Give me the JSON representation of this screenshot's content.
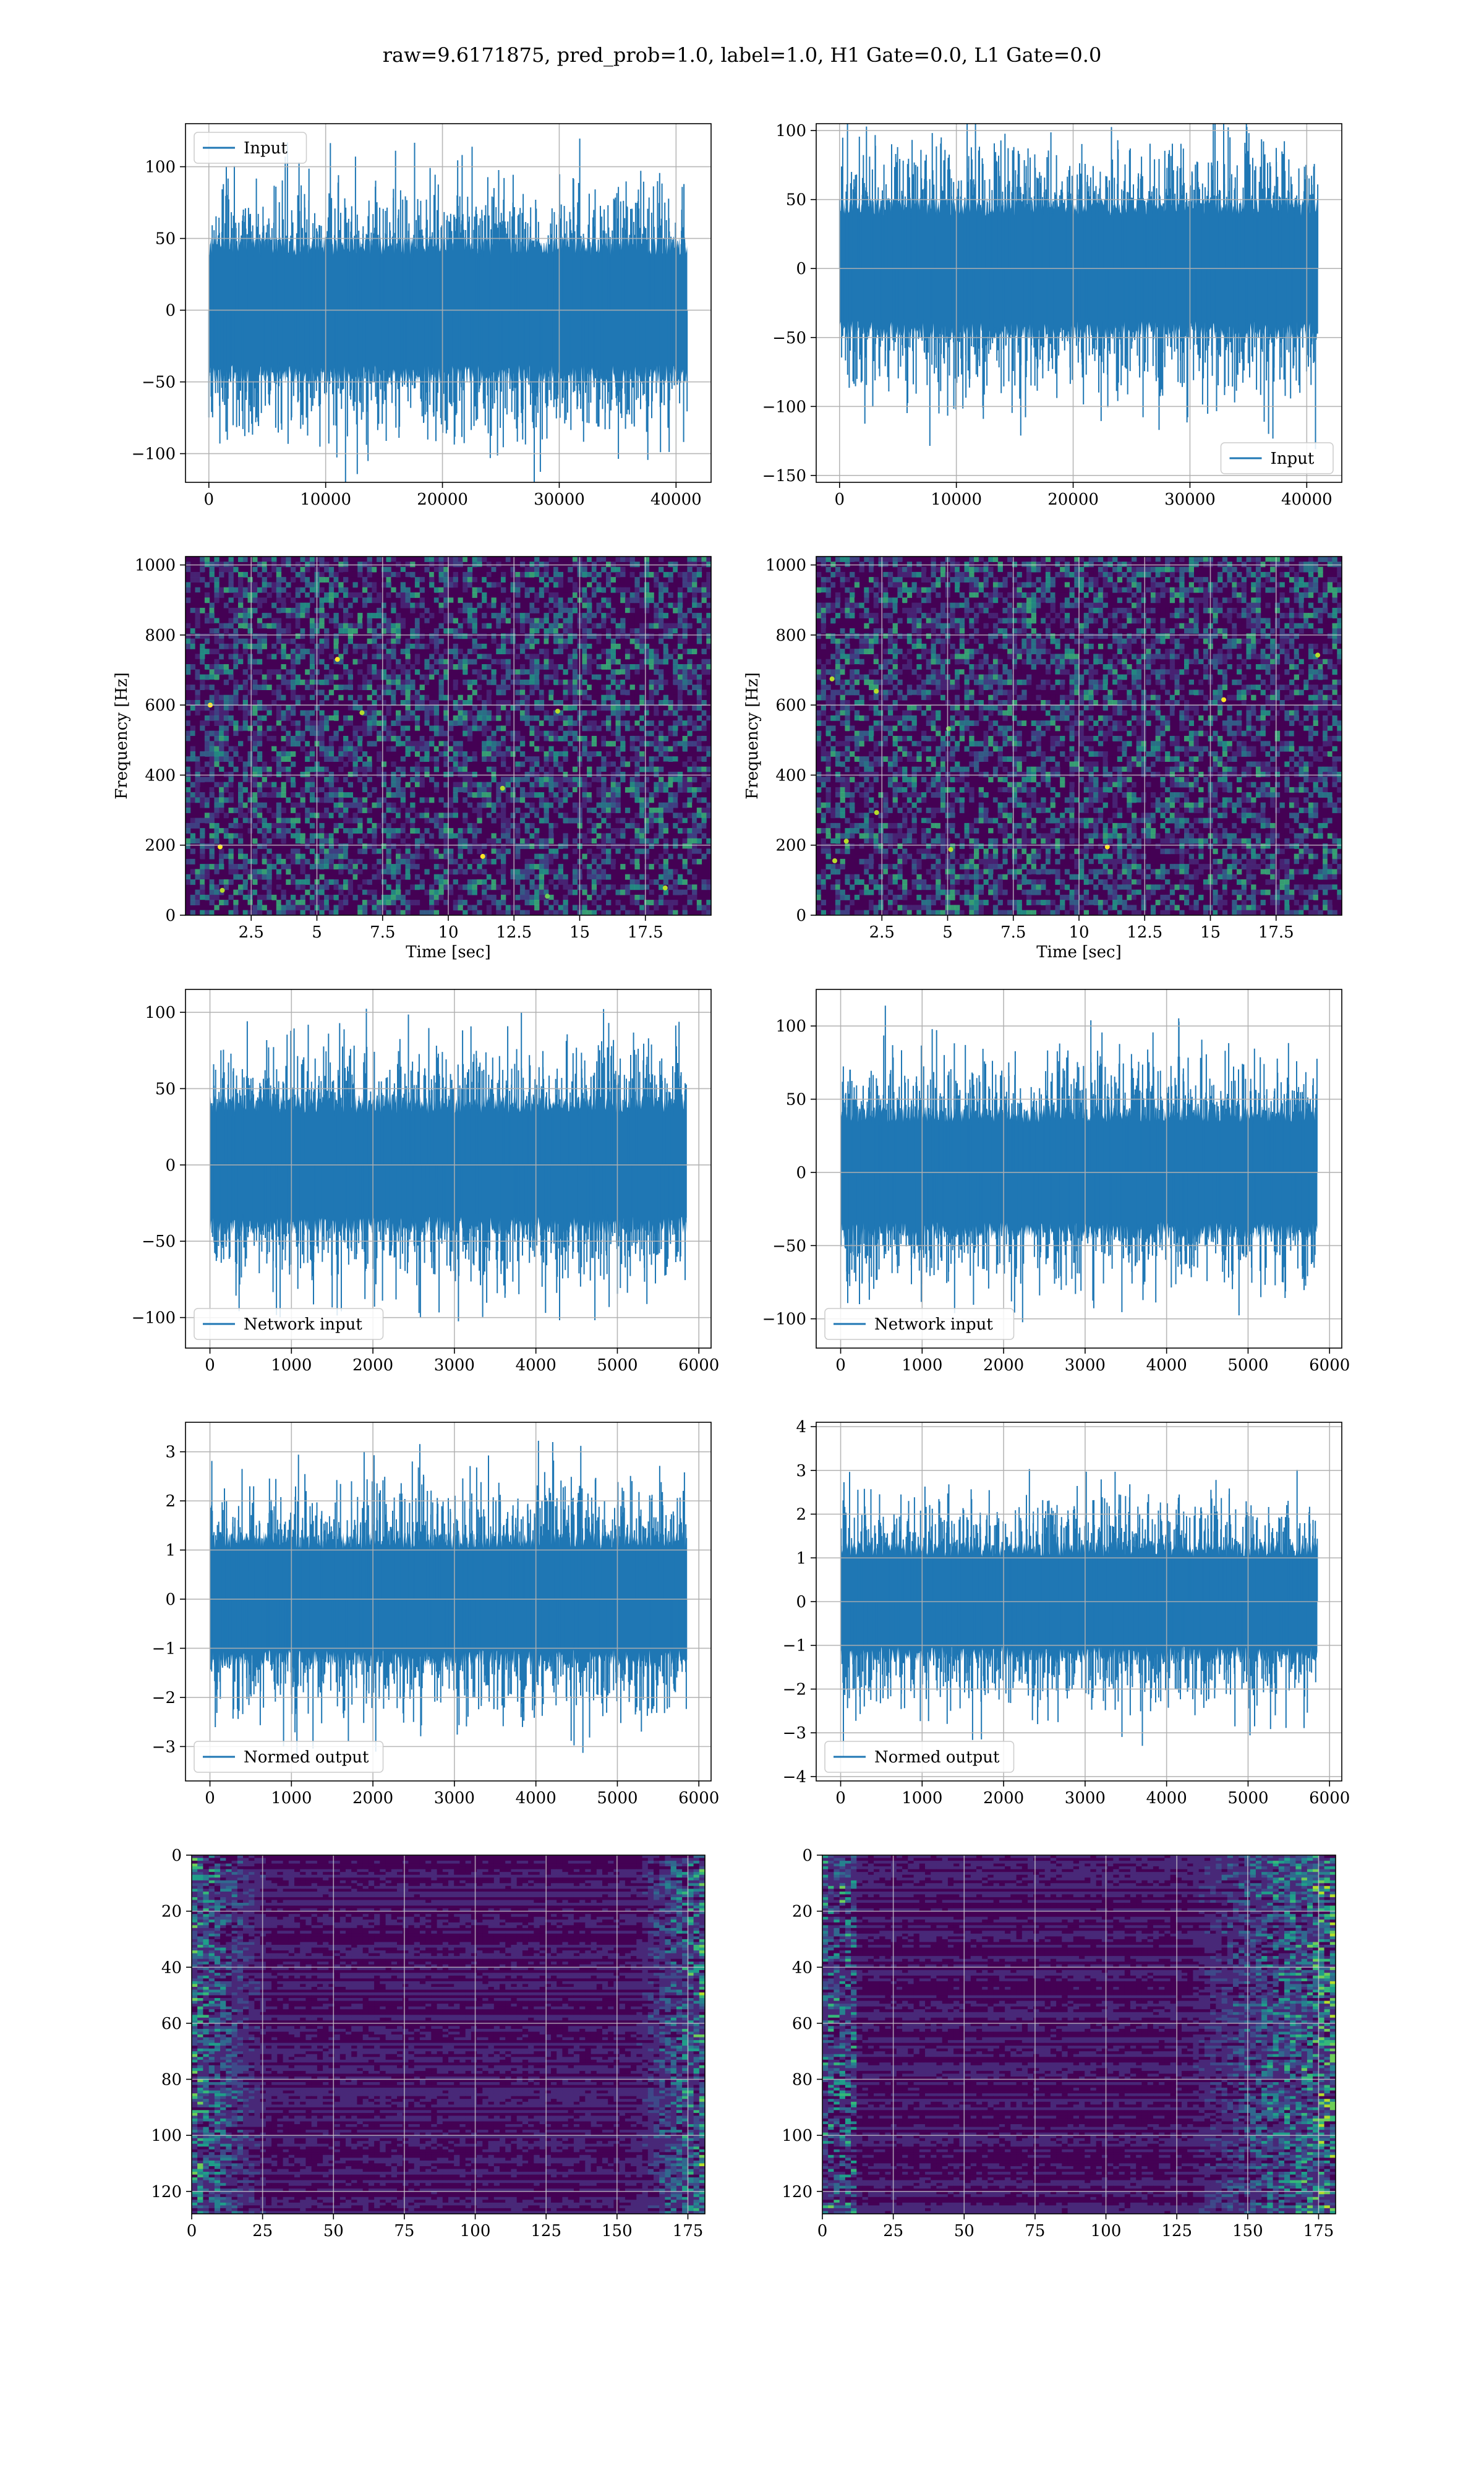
{
  "figure": {
    "suptitle": "raw=9.6171875, pred_prob=1.0, label=1.0, H1 Gate=0.0, L1 Gate=0.0"
  },
  "colors": {
    "series": "#1f77b4",
    "grid": "#b0b0b0",
    "viridis_low": "#440154",
    "viridis_high": "#fde725"
  },
  "chart_data": [
    {
      "id": "input_h1",
      "type": "line",
      "title": "",
      "xlabel": "",
      "ylabel": "",
      "xlim": [
        -2000,
        43000
      ],
      "ylim": [
        -120,
        130
      ],
      "xticks": [
        0,
        10000,
        20000,
        30000,
        40000
      ],
      "yticks": [
        -100,
        -50,
        0,
        50,
        100
      ],
      "x_range": [
        0,
        40960
      ],
      "amplitude_envelope": 45,
      "peak_amplitude": 120,
      "legend": {
        "loc": "upper-left",
        "entries": [
          "Input"
        ]
      },
      "series": [
        {
          "name": "Input"
        }
      ],
      "grid": true
    },
    {
      "id": "input_l1",
      "type": "line",
      "title": "",
      "xlabel": "",
      "ylabel": "",
      "xlim": [
        -2000,
        43000
      ],
      "ylim": [
        -155,
        105
      ],
      "xticks": [
        0,
        10000,
        20000,
        30000,
        40000
      ],
      "yticks": [
        -150,
        -100,
        -50,
        0,
        50,
        100
      ],
      "x_range": [
        0,
        40960
      ],
      "amplitude_envelope": 45,
      "peak_amplitude": 140,
      "legend": {
        "loc": "lower-right",
        "entries": [
          "Input"
        ]
      },
      "series": [
        {
          "name": "Input"
        }
      ],
      "grid": true
    },
    {
      "id": "spectrogram_h1",
      "type": "heatmap",
      "title": "",
      "xlabel": "Time [sec]",
      "ylabel": "Frequency [Hz]",
      "xlim": [
        0,
        20
      ],
      "ylim": [
        0,
        1024
      ],
      "xticks": [
        2.5,
        5.0,
        7.5,
        10.0,
        12.5,
        15.0,
        17.5
      ],
      "yticks": [
        0,
        200,
        400,
        600,
        800,
        1000
      ],
      "colormap": "viridis",
      "grid": true
    },
    {
      "id": "spectrogram_l1",
      "type": "heatmap",
      "title": "",
      "xlabel": "Time [sec]",
      "ylabel": "Frequency [Hz]",
      "xlim": [
        0,
        20
      ],
      "ylim": [
        0,
        1024
      ],
      "xticks": [
        2.5,
        5.0,
        7.5,
        10.0,
        12.5,
        15.0,
        17.5
      ],
      "yticks": [
        0,
        200,
        400,
        600,
        800,
        1000
      ],
      "colormap": "viridis",
      "grid": true
    },
    {
      "id": "network_input_h1",
      "type": "line",
      "title": "",
      "xlabel": "",
      "ylabel": "",
      "xlim": [
        -300,
        6150
      ],
      "ylim": [
        -120,
        115
      ],
      "xticks": [
        0,
        1000,
        2000,
        3000,
        4000,
        5000,
        6000
      ],
      "yticks": [
        -100,
        -50,
        0,
        50,
        100
      ],
      "x_range": [
        0,
        5850
      ],
      "amplitude_envelope": 40,
      "peak_amplitude": 105,
      "legend": {
        "loc": "lower-left",
        "entries": [
          "Network input"
        ]
      },
      "series": [
        {
          "name": "Network input"
        }
      ],
      "grid": true
    },
    {
      "id": "network_input_l1",
      "type": "line",
      "title": "",
      "xlabel": "",
      "ylabel": "",
      "xlim": [
        -300,
        6150
      ],
      "ylim": [
        -120,
        125
      ],
      "xticks": [
        0,
        1000,
        2000,
        3000,
        4000,
        5000,
        6000
      ],
      "yticks": [
        -100,
        -50,
        0,
        50,
        100
      ],
      "x_range": [
        0,
        5850
      ],
      "amplitude_envelope": 40,
      "peak_amplitude": 115,
      "legend": {
        "loc": "lower-left",
        "entries": [
          "Network input"
        ]
      },
      "series": [
        {
          "name": "Network input"
        }
      ],
      "grid": true
    },
    {
      "id": "normed_output_h1",
      "type": "line",
      "title": "",
      "xlabel": "",
      "ylabel": "",
      "xlim": [
        -300,
        6150
      ],
      "ylim": [
        -3.7,
        3.6
      ],
      "xticks": [
        0,
        1000,
        2000,
        3000,
        4000,
        5000,
        6000
      ],
      "yticks": [
        -3,
        -2,
        -1,
        0,
        1,
        2,
        3
      ],
      "x_range": [
        0,
        5850
      ],
      "amplitude_envelope": 1.2,
      "peak_amplitude": 3.4,
      "legend": {
        "loc": "lower-left",
        "entries": [
          "Normed output"
        ]
      },
      "series": [
        {
          "name": "Normed output"
        }
      ],
      "grid": true
    },
    {
      "id": "normed_output_l1",
      "type": "line",
      "title": "",
      "xlabel": "",
      "ylabel": "",
      "xlim": [
        -300,
        6150
      ],
      "ylim": [
        -4.1,
        4.1
      ],
      "xticks": [
        0,
        1000,
        2000,
        3000,
        4000,
        5000,
        6000
      ],
      "yticks": [
        -4,
        -3,
        -2,
        -1,
        0,
        1,
        2,
        3,
        4
      ],
      "x_range": [
        0,
        5850
      ],
      "amplitude_envelope": 1.2,
      "peak_amplitude": 3.7,
      "legend": {
        "loc": "lower-left",
        "entries": [
          "Normed output"
        ]
      },
      "series": [
        {
          "name": "Normed output"
        }
      ],
      "grid": true
    },
    {
      "id": "feature_map_h1",
      "type": "heatmap",
      "title": "",
      "xlabel": "",
      "ylabel": "",
      "xlim": [
        0,
        181
      ],
      "ylim": [
        128,
        0
      ],
      "xticks": [
        0,
        25,
        50,
        75,
        100,
        125,
        150,
        175
      ],
      "yticks": [
        0,
        20,
        40,
        60,
        80,
        100,
        120
      ],
      "colormap": "viridis",
      "grid": true,
      "bright_regions": "left edge and right edge"
    },
    {
      "id": "feature_map_l1",
      "type": "heatmap",
      "title": "",
      "xlabel": "",
      "ylabel": "",
      "xlim": [
        0,
        181
      ],
      "ylim": [
        128,
        0
      ],
      "xticks": [
        0,
        25,
        50,
        75,
        100,
        125,
        150,
        175
      ],
      "yticks": [
        0,
        20,
        40,
        60,
        80,
        100,
        120
      ],
      "colormap": "viridis",
      "grid": true,
      "bright_regions": "right side (x 130-181)"
    }
  ]
}
